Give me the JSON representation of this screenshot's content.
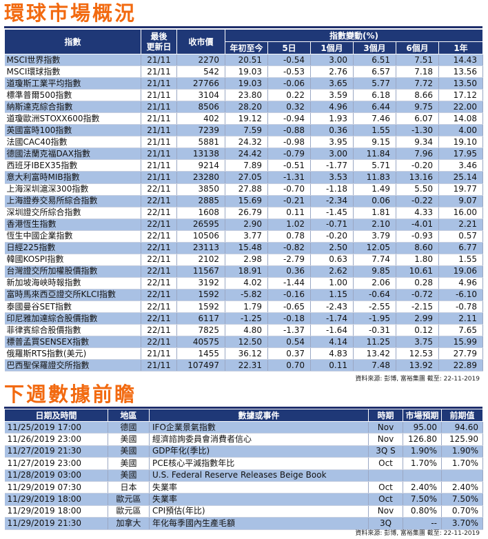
{
  "market": {
    "title": "環球市場概況",
    "header": {
      "index": "指數",
      "last_update": [
        "最後",
        "更新日"
      ],
      "close": "收市價",
      "change_group": "指數變動(%)",
      "periods": [
        "年初至今",
        "5日",
        "1個月",
        "3個月",
        "6個月",
        "1年"
      ]
    },
    "rows": [
      [
        "MSCI世界指數",
        "21/11",
        "2270",
        "20.51",
        "-0.54",
        "3.00",
        "6.51",
        "7.51",
        "14.43"
      ],
      [
        "MSCI環球指數",
        "21/11",
        "542",
        "19.03",
        "-0.53",
        "2.76",
        "6.57",
        "7.18",
        "13.56"
      ],
      [
        "道瓊斯工業平均指數",
        "21/11",
        "27766",
        "19.03",
        "-0.06",
        "3.65",
        "5.77",
        "7.72",
        "13.50"
      ],
      [
        "標準普爾500指數",
        "21/11",
        "3104",
        "23.80",
        "0.22",
        "3.59",
        "6.18",
        "8.66",
        "17.12"
      ],
      [
        "納斯達克綜合指數",
        "21/11",
        "8506",
        "28.20",
        "0.32",
        "4.96",
        "6.44",
        "9.75",
        "22.00"
      ],
      [
        "道瓊歐洲STOXX600指數",
        "21/11",
        "402",
        "19.12",
        "-0.94",
        "1.93",
        "7.46",
        "6.07",
        "14.08"
      ],
      [
        "英國富時100指數",
        "21/11",
        "7239",
        "7.59",
        "-0.88",
        "0.36",
        "1.55",
        "-1.30",
        "4.00"
      ],
      [
        "法國CAC40指數",
        "21/11",
        "5881",
        "24.32",
        "-0.98",
        "3.95",
        "9.15",
        "9.34",
        "19.10"
      ],
      [
        "德國法蘭克福DAX指數",
        "21/11",
        "13138",
        "24.42",
        "-0.79",
        "3.00",
        "11.84",
        "7.96",
        "17.95"
      ],
      [
        "西班牙IBEX35指數",
        "21/11",
        "9214",
        "7.89",
        "-0.51",
        "-1.77",
        "5.71",
        "-0.20",
        "3.46"
      ],
      [
        "意大利富時MIB指數",
        "21/11",
        "23280",
        "27.05",
        "-1.31",
        "3.53",
        "11.83",
        "13.16",
        "25.14"
      ],
      [
        "上海深圳滬深300指數",
        "22/11",
        "3850",
        "27.88",
        "-0.70",
        "-1.18",
        "1.49",
        "5.50",
        "19.77"
      ],
      [
        "上海證券交易所綜合指數",
        "22/11",
        "2885",
        "15.69",
        "-0.21",
        "-2.34",
        "0.06",
        "-0.22",
        "9.07"
      ],
      [
        "深圳證交所綜合指數",
        "22/11",
        "1608",
        "26.79",
        "0.11",
        "-1.45",
        "1.81",
        "4.33",
        "16.00"
      ],
      [
        "香港恆生指數",
        "22/11",
        "26595",
        "2.90",
        "1.02",
        "-0.71",
        "2.10",
        "-4.01",
        "2.21"
      ],
      [
        "恆生中國企業指數",
        "22/11",
        "10506",
        "3.77",
        "0.78",
        "-0.20",
        "3.79",
        "-0.93",
        "0.57"
      ],
      [
        "日經225指數",
        "22/11",
        "23113",
        "15.48",
        "-0.82",
        "2.50",
        "12.05",
        "8.60",
        "6.77"
      ],
      [
        "韓國KOSPI指數",
        "22/11",
        "2102",
        "2.98",
        "-2.79",
        "0.63",
        "7.74",
        "1.80",
        "1.55"
      ],
      [
        "台灣證交所加權股價指數",
        "22/11",
        "11567",
        "18.91",
        "0.36",
        "2.62",
        "9.85",
        "10.61",
        "19.06"
      ],
      [
        "新加坡海峽時報指數",
        "22/11",
        "3192",
        "4.02",
        "-1.44",
        "1.00",
        "2.06",
        "0.28",
        "4.96"
      ],
      [
        "富時馬來西亞證交所KLCI指數",
        "22/11",
        "1592",
        "-5.82",
        "-0.16",
        "1.15",
        "-0.64",
        "-0.72",
        "-6.10"
      ],
      [
        "泰國曼谷SET指數",
        "22/11",
        "1592",
        "1.79",
        "-0.65",
        "-2.43",
        "-2.55",
        "-2.15",
        "-0.78"
      ],
      [
        "印尼雅加達綜合股價指數",
        "22/11",
        "6117",
        "-1.25",
        "-0.18",
        "-1.74",
        "-1.95",
        "2.99",
        "2.11"
      ],
      [
        "菲律賓綜合股價指數",
        "22/11",
        "7825",
        "4.80",
        "-1.37",
        "-1.64",
        "-0.31",
        "0.12",
        "7.65"
      ],
      [
        "標普孟買SENSEX指數",
        "22/11",
        "40575",
        "12.50",
        "0.54",
        "4.14",
        "11.25",
        "3.75",
        "15.99"
      ],
      [
        "俄羅斯RTS指數(美元)",
        "21/11",
        "1455",
        "36.12",
        "0.37",
        "4.83",
        "13.42",
        "12.53",
        "27.79"
      ],
      [
        "巴西聖保羅證交所指數",
        "21/11",
        "107497",
        "22.31",
        "0.70",
        "0.11",
        "7.48",
        "13.92",
        "22.89"
      ]
    ],
    "source": "資料來源: 彭博, 富裕集團 截至: 22-11-2019"
  },
  "calendar": {
    "title": "下週數據前瞻",
    "header": [
      "日期及時間",
      "地區",
      "數據或事件",
      "時期",
      "市場預期",
      "前期值"
    ],
    "rows": [
      [
        "11/25/2019 17:00",
        "德國",
        "IFO企業景氣指數",
        "Nov",
        "95.00",
        "94.60"
      ],
      [
        "11/26/2019 23:00",
        "美國",
        "經濟諮詢委員會消費者信心",
        "Nov",
        "126.80",
        "125.90"
      ],
      [
        "11/27/2019 21:30",
        "美國",
        "GDP年化(季比)",
        "3Q S",
        "1.90%",
        "1.90%"
      ],
      [
        "11/27/2019 23:00",
        "美國",
        "PCE核心平減指數年比",
        "Oct",
        "1.70%",
        "1.70%"
      ],
      [
        "11/28/2019 03:00",
        "美國",
        "U.S. Federal Reserve Releases Beige Book",
        "",
        "",
        ""
      ],
      [
        "11/29/2019 07:30",
        "日本",
        "失業率",
        "Oct",
        "2.40%",
        "2.40%"
      ],
      [
        "11/29/2019 18:00",
        "歐元區",
        "失業率",
        "Oct",
        "7.50%",
        "7.50%"
      ],
      [
        "11/29/2019 18:00",
        "歐元區",
        "CPI預估(年比)",
        "Nov",
        "0.80%",
        "0.70%"
      ],
      [
        "11/29/2019 21:30",
        "加拿大",
        "年化每季國內生產毛額",
        "3Q",
        "--",
        "3.70%"
      ]
    ],
    "source": "資料來源: 彭博, 富裕集團 截至: 22-11-2019"
  }
}
